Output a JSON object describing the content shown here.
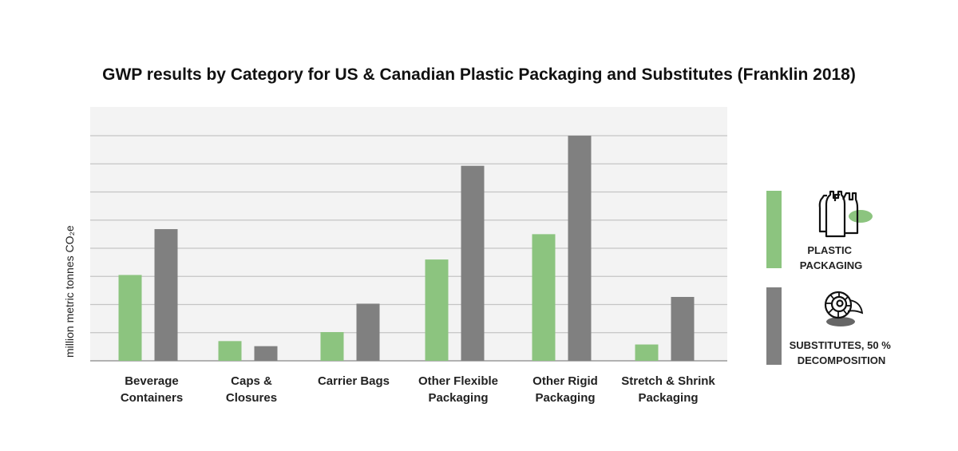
{
  "chart_data": {
    "type": "bar",
    "title": "GWP results by Category for US & Canadian Plastic Packaging and Substitutes (Franklin 2018)",
    "ylabel": "million metric tonnes CO₂e",
    "xlabel": "",
    "categories": [
      [
        "Beverage",
        "Containers"
      ],
      [
        "Caps &",
        "Closures"
      ],
      [
        "Carrier Bags"
      ],
      [
        "Other Flexible",
        "Packaging"
      ],
      [
        "Other Rigid",
        "Packaging"
      ],
      [
        "Stretch & Shrink",
        "Packaging"
      ]
    ],
    "ylim": [
      0,
      8
    ],
    "grid": true,
    "series": [
      {
        "name": "PLASTIC PACKAGING",
        "color": "#8cc47f",
        "values": [
          3.05,
          0.7,
          1.02,
          3.6,
          4.5,
          0.58
        ]
      },
      {
        "name": "SUBSTITUTES, 50 % DECOMPOSITION",
        "color": "#808080",
        "values": [
          4.68,
          0.52,
          2.03,
          6.93,
          8.0,
          2.27
        ]
      }
    ],
    "legend": {
      "placement": "right",
      "items": [
        {
          "lines": [
            "PLASTIC",
            "PACKAGING"
          ],
          "icon": "plastic-bags-icon"
        },
        {
          "lines": [
            "SUBSTITUTES, 50 %",
            "DECOMPOSITION"
          ],
          "icon": "shell-icon"
        }
      ]
    }
  }
}
